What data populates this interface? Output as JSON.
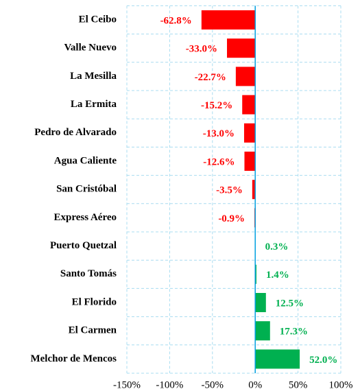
{
  "chart_data": {
    "type": "barh",
    "categories": [
      "El Ceibo",
      "Valle Nuevo",
      "La Mesilla",
      "La Ermita",
      "Pedro de Alvarado",
      "Agua Caliente",
      "San Cristóbal",
      "Express Aéreo",
      "Puerto Quetzal ",
      "Santo Tomás",
      "El Florido",
      "El Carmen",
      "Melchor de Mencos"
    ],
    "values": [
      -62.8,
      -33.0,
      -22.7,
      -15.2,
      -13.0,
      -12.6,
      -3.5,
      -0.9,
      0.3,
      1.4,
      12.5,
      17.3,
      52.0
    ],
    "value_labels": [
      "-62.8%",
      "-33.0%",
      "-22.7%",
      "-15.2%",
      "-13.0%",
      "-12.6%",
      "-3.5%",
      "-0.9%",
      "0.3%",
      "1.4%",
      "12.5%",
      "17.3%",
      "52.0%"
    ],
    "colors": [
      "#ff0000",
      "#ff0000",
      "#ff0000",
      "#ff0000",
      "#ff0000",
      "#ff0000",
      "#ff0000",
      "#ff0000",
      "#00b050",
      "#00b050",
      "#00b050",
      "#00b050",
      "#00b050"
    ],
    "xlim": [
      -150,
      100
    ],
    "xticks": [
      {
        "value": -150,
        "label": "-150%"
      },
      {
        "value": -100,
        "label": "-100%"
      },
      {
        "value": -50,
        "label": "-50%"
      },
      {
        "value": 0,
        "label": "0%"
      },
      {
        "value": 50,
        "label": "50%"
      },
      {
        "value": 100,
        "label": "100%"
      }
    ],
    "grid": true
  }
}
